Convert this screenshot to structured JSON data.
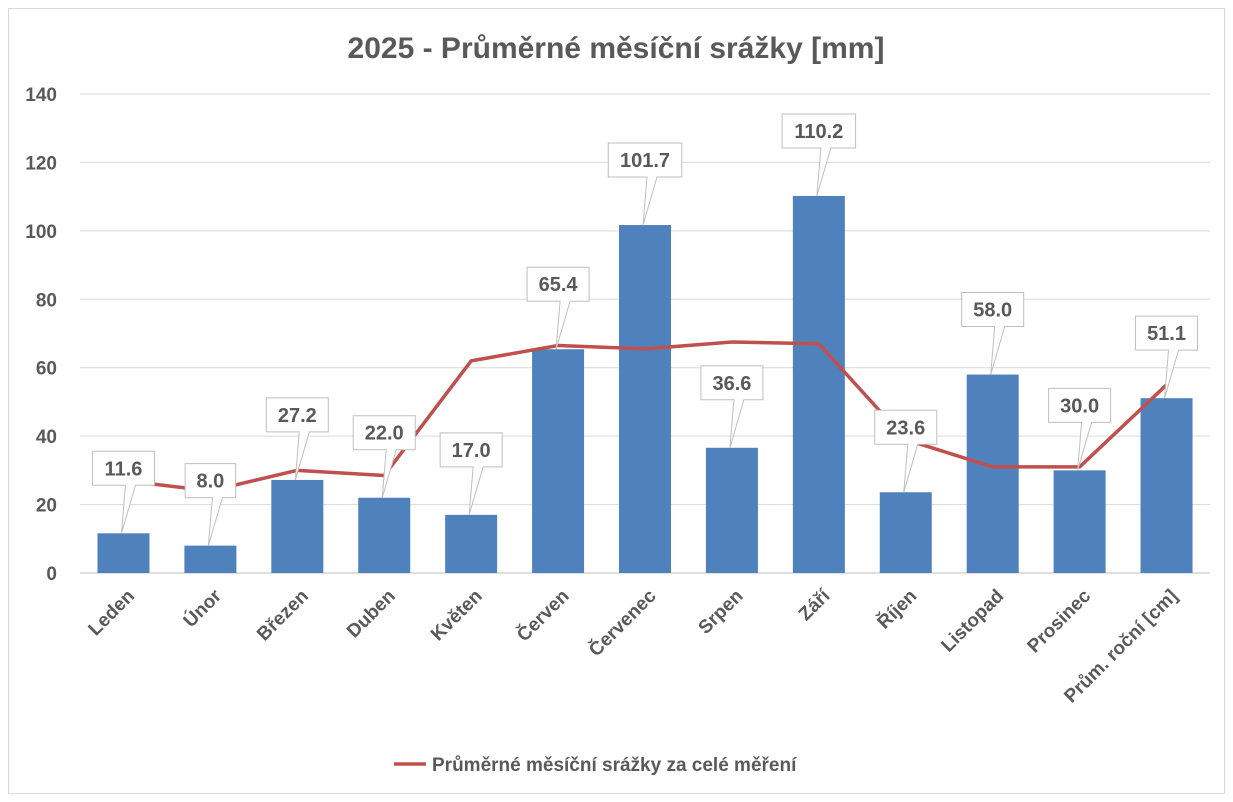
{
  "chart_data": {
    "type": "bar",
    "title": "2025 - Průměrné měsíční srážky [mm]",
    "xlabel": "",
    "ylabel": "",
    "ylim": [
      0,
      140
    ],
    "yticks": [
      0,
      20,
      40,
      60,
      80,
      100,
      120,
      140
    ],
    "grid": true,
    "legend_position": "bottom",
    "categories": [
      "Leden",
      "Únor",
      "Březen",
      "Duben",
      "Květen",
      "Červen",
      "Červenec",
      "Srpen",
      "Září",
      "Říjen",
      "Listopad",
      "Prosinec",
      "Prům. roční [cm]"
    ],
    "series": [
      {
        "type": "bar",
        "color": "#4f81bd",
        "values": [
          11.6,
          8.0,
          27.2,
          22.0,
          17.0,
          65.4,
          101.7,
          36.6,
          110.2,
          23.6,
          58.0,
          30.0,
          51.1
        ],
        "data_labels": [
          "11.6",
          "8.0",
          "27.2",
          "22.0",
          "17.0",
          "65.4",
          "101.7",
          "36.6",
          "110.2",
          "23.6",
          "58.0",
          "30.0",
          "51.1"
        ]
      },
      {
        "type": "line",
        "name": "Průměrné měsíční srážky za celé měření",
        "color": "#c0504d",
        "values": [
          27,
          24,
          30,
          28.5,
          62,
          66.5,
          65.5,
          67.5,
          67,
          39,
          31,
          31,
          55
        ]
      }
    ]
  }
}
